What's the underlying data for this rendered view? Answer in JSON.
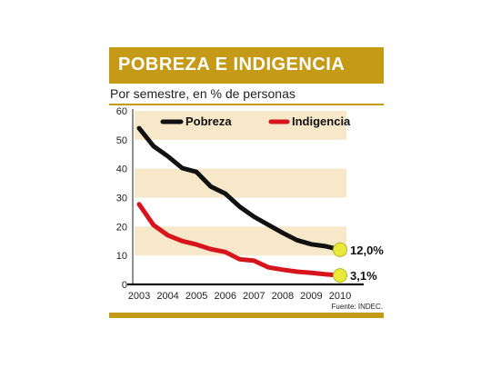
{
  "title": "POBREZA E INDIGENCIA",
  "subtitle": "Por semestre, en % de personas",
  "source": "Fuente: INDEC.",
  "colors": {
    "accent": "#c59a16",
    "band": "#f6e8c8",
    "pobreza": "#111111",
    "indigencia": "#d7141b",
    "endpoint": "#e9e93a"
  },
  "chart_data": {
    "type": "line",
    "x_ticks": [
      "2003",
      "2004",
      "2005",
      "2006",
      "2007",
      "2008",
      "2009",
      "2010"
    ],
    "y_ticks": [
      "0",
      "10",
      "20",
      "30",
      "40",
      "50",
      "60"
    ],
    "ylim": [
      0,
      60
    ],
    "xlim": [
      2003,
      2010
    ],
    "legend_position": "top",
    "series": [
      {
        "name": "Pobreza",
        "x": [
          2003.0,
          2003.5,
          2004.0,
          2004.5,
          2005.0,
          2005.5,
          2006.0,
          2006.5,
          2007.0,
          2007.5,
          2008.0,
          2008.5,
          2009.0,
          2009.5,
          2010.0
        ],
        "y": [
          54.0,
          47.8,
          44.3,
          40.2,
          38.9,
          33.8,
          31.4,
          26.9,
          23.4,
          20.6,
          17.8,
          15.3,
          13.9,
          13.2,
          12.0
        ]
      },
      {
        "name": "Indigencia",
        "x": [
          2003.0,
          2003.5,
          2004.0,
          2004.5,
          2005.0,
          2005.5,
          2006.0,
          2006.5,
          2007.0,
          2007.5,
          2008.0,
          2008.5,
          2009.0,
          2009.5,
          2010.0
        ],
        "y": [
          27.7,
          20.5,
          17.0,
          15.0,
          13.8,
          12.2,
          11.2,
          8.7,
          8.2,
          5.9,
          5.1,
          4.4,
          4.0,
          3.5,
          3.1
        ]
      }
    ],
    "annotations": [
      {
        "series": "Pobreza",
        "x": 2010,
        "y": 12.0,
        "label": "12,0%"
      },
      {
        "series": "Indigencia",
        "x": 2010,
        "y": 3.1,
        "label": "3,1%"
      }
    ]
  }
}
